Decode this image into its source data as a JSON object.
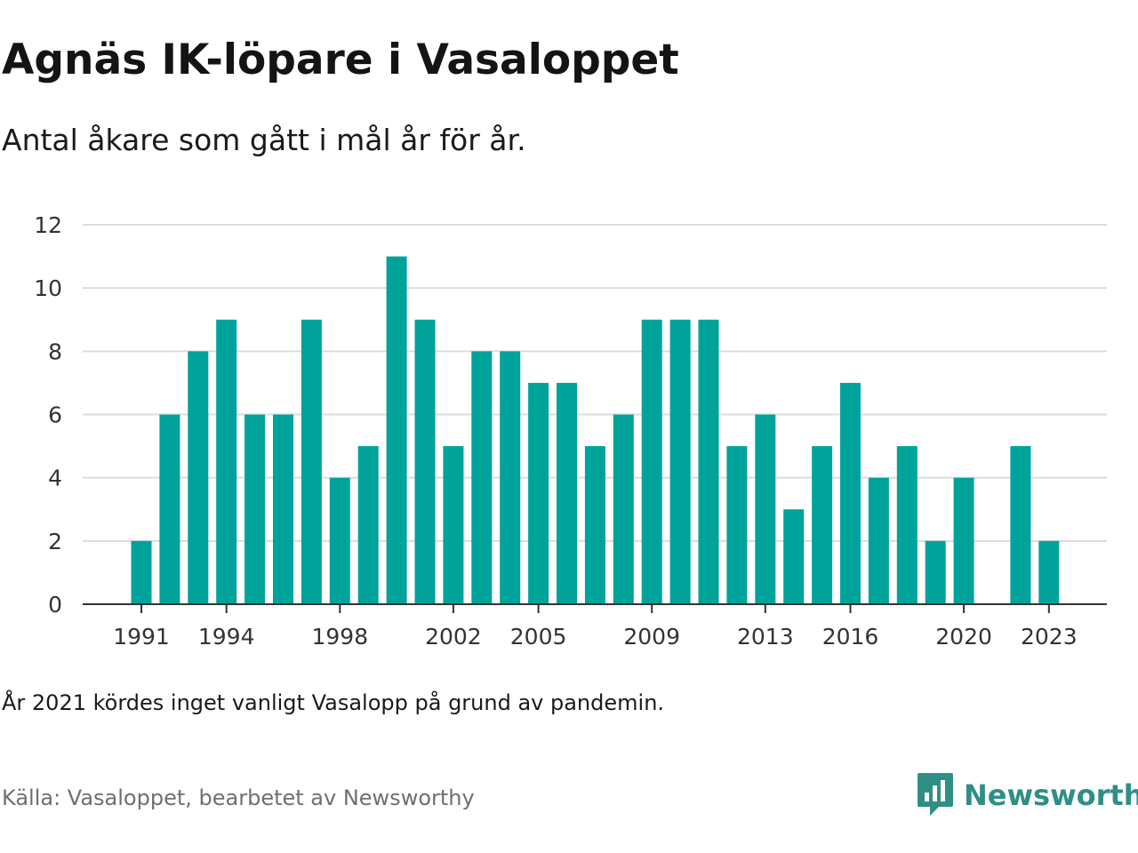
{
  "title": "Agnäs IK-löpare i Vasaloppet",
  "subtitle": "Antal åkare som gått i mål år för år.",
  "footnote": "År 2021 kördes inget vanligt Vasalopp på grund av pandemin.",
  "source": "Källa: Vasaloppet, bearbetet av Newsworthy",
  "brand": {
    "name": "Newsworthy",
    "icon": "newsworthy-logo-icon",
    "color": "#2f8f86"
  },
  "chart_data": {
    "type": "bar",
    "title": "Agnäs IK-löpare i Vasaloppet",
    "subtitle": "Antal åkare som gått i mål år för år.",
    "xlabel": "",
    "ylabel": "",
    "categories": [
      1991,
      1992,
      1993,
      1994,
      1995,
      1996,
      1997,
      1998,
      1999,
      2000,
      2001,
      2002,
      2003,
      2004,
      2005,
      2006,
      2007,
      2008,
      2009,
      2010,
      2011,
      2012,
      2013,
      2014,
      2015,
      2016,
      2017,
      2018,
      2019,
      2020,
      2021,
      2022,
      2023
    ],
    "values": [
      2,
      6,
      8,
      9,
      6,
      6,
      9,
      4,
      5,
      11,
      9,
      5,
      8,
      8,
      7,
      7,
      5,
      6,
      9,
      9,
      9,
      5,
      6,
      3,
      5,
      7,
      4,
      5,
      2,
      4,
      0,
      5,
      2
    ],
    "x_tick_labels": [
      "1991",
      "1994",
      "1998",
      "2002",
      "2005",
      "2009",
      "2013",
      "2016",
      "2020",
      "2023"
    ],
    "y_ticks": [
      0,
      2,
      4,
      6,
      8,
      10,
      12
    ],
    "ylim": [
      0,
      12
    ],
    "grid": true,
    "legend": "none",
    "bar_color": "#00a39a"
  }
}
